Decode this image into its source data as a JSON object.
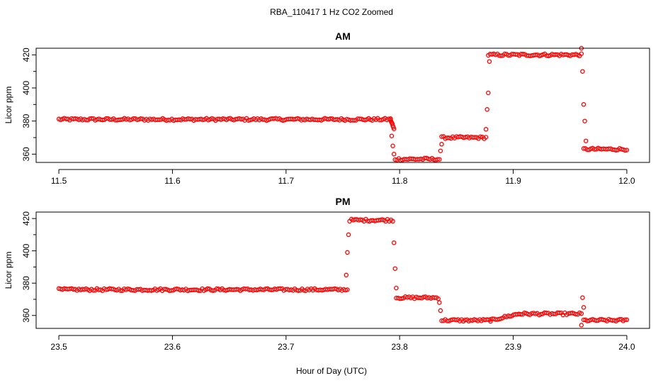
{
  "figure": {
    "title": "RBA_110417  1 Hz CO2 Zoomed",
    "xlabel": "Hour of Day (UTC)"
  },
  "chart_data": [
    {
      "type": "scatter",
      "title": "AM",
      "ylabel": "Licor ppm",
      "xlim": [
        11.48,
        12.02
      ],
      "ylim": [
        355,
        424
      ],
      "xticks": [
        "11.5",
        "11.6",
        "11.7",
        "11.8",
        "11.9",
        "12.0"
      ],
      "xtick_values": [
        11.5,
        11.6,
        11.7,
        11.8,
        11.9,
        12.0
      ],
      "yticks": [
        "360",
        "380",
        "400",
        "420"
      ],
      "ytick_values": [
        360,
        380,
        400,
        420
      ],
      "marker_color": "#ff0000",
      "segments": [
        {
          "x": [
            11.5,
            11.792
          ],
          "y": 381
        },
        {
          "x": [
            11.792,
            11.795
          ],
          "y": [
            381,
            375
          ]
        },
        {
          "x": [
            11.796,
            11.835
          ],
          "y": 357
        },
        {
          "x": [
            11.837,
            11.876
          ],
          "y": 370
        },
        {
          "x": [
            11.878,
            11.96
          ],
          "y": 420
        },
        {
          "x": [
            11.962,
            12.0
          ],
          "y": 363
        }
      ],
      "transitions": [
        {
          "x": 11.793,
          "y": 371
        },
        {
          "x": 11.794,
          "y": 365
        },
        {
          "x": 11.795,
          "y": 360
        },
        {
          "x": 11.836,
          "y": 362
        },
        {
          "x": 11.837,
          "y": 366
        },
        {
          "x": 11.876,
          "y": 375
        },
        {
          "x": 11.877,
          "y": 387
        },
        {
          "x": 11.878,
          "y": 397
        },
        {
          "x": 11.879,
          "y": 416
        },
        {
          "x": 11.96,
          "y": 424
        },
        {
          "x": 11.961,
          "y": 410
        },
        {
          "x": 11.962,
          "y": 390
        },
        {
          "x": 11.963,
          "y": 380
        },
        {
          "x": 11.964,
          "y": 368
        }
      ]
    },
    {
      "type": "scatter",
      "title": "PM",
      "ylabel": "Licor ppm",
      "xlim": [
        23.48,
        24.02
      ],
      "ylim": [
        352,
        424
      ],
      "xticks": [
        "23.5",
        "23.6",
        "23.7",
        "23.8",
        "23.9",
        "24.0"
      ],
      "xtick_values": [
        23.5,
        23.6,
        23.7,
        23.8,
        23.9,
        24.0
      ],
      "yticks": [
        "360",
        "380",
        "400",
        "420"
      ],
      "ytick_values": [
        360,
        380,
        400,
        420
      ],
      "marker_color": "#ff0000",
      "segments": [
        {
          "x": [
            23.5,
            23.754
          ],
          "y": 376
        },
        {
          "x": [
            23.756,
            23.794
          ],
          "y": 419
        },
        {
          "x": [
            23.797,
            23.834
          ],
          "y": 371
        },
        {
          "x": [
            23.837,
            23.88
          ],
          "y": 357
        },
        {
          "x": [
            23.88,
            23.905
          ],
          "y": [
            357,
            361
          ]
        },
        {
          "x": [
            23.905,
            23.96
          ],
          "y": 361
        },
        {
          "x": [
            23.962,
            24.0
          ],
          "y": 357
        }
      ],
      "transitions": [
        {
          "x": 23.753,
          "y": 385
        },
        {
          "x": 23.754,
          "y": 399
        },
        {
          "x": 23.755,
          "y": 410
        },
        {
          "x": 23.795,
          "y": 405
        },
        {
          "x": 23.796,
          "y": 389
        },
        {
          "x": 23.797,
          "y": 377
        },
        {
          "x": 23.835,
          "y": 368
        },
        {
          "x": 23.836,
          "y": 363
        },
        {
          "x": 23.96,
          "y": 354
        },
        {
          "x": 23.961,
          "y": 371
        },
        {
          "x": 23.962,
          "y": 365
        }
      ]
    }
  ]
}
